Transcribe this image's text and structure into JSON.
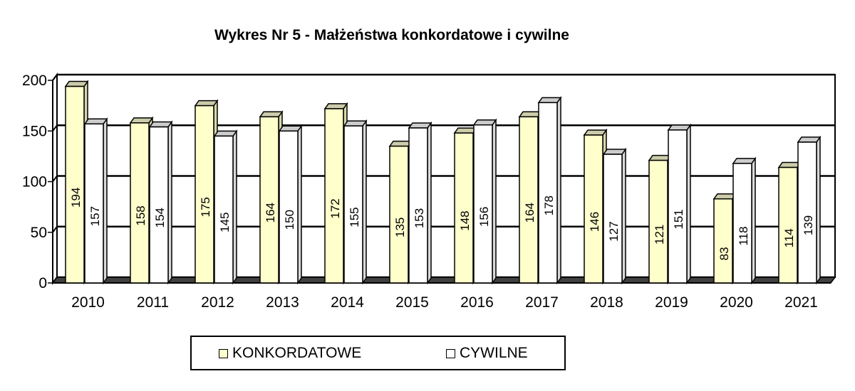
{
  "chart_data": {
    "type": "bar",
    "title": "Wykres Nr 5 - Małżeństwa konkordatowe i cywilne",
    "categories": [
      "2010",
      "2011",
      "2012",
      "2013",
      "2014",
      "2015",
      "2016",
      "2017",
      "2018",
      "2019",
      "2020",
      "2021"
    ],
    "series": [
      {
        "name": "KONKORDATOWE",
        "color": "#ffffcc",
        "values": [
          194,
          158,
          175,
          164,
          172,
          135,
          148,
          164,
          146,
          121,
          83,
          114
        ]
      },
      {
        "name": "CYWILNE",
        "color": "#ffffff",
        "values": [
          157,
          154,
          145,
          150,
          155,
          153,
          156,
          178,
          127,
          151,
          118,
          139
        ]
      }
    ],
    "ylim": [
      0,
      200
    ],
    "yticks": [
      0,
      50,
      100,
      150,
      200
    ],
    "grid": true,
    "legend_position": "bottom",
    "three_d": true
  }
}
